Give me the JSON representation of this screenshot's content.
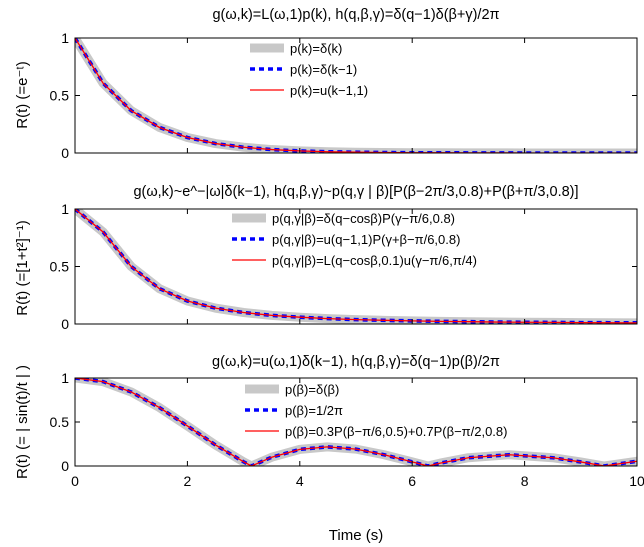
{
  "chart_data": [
    {
      "type": "line",
      "title": "g(ω,k)=L(ω,1)p(k), h(q,β,γ)=δ(q−1)δ(β+γ)/2π",
      "ylabel": "R(t) (=e⁻ᵗ)",
      "xlim": [
        0,
        10
      ],
      "ylim": [
        0,
        1
      ],
      "yticks": [
        "0",
        "0.5",
        "1"
      ],
      "x": [
        0,
        0.5,
        1,
        1.5,
        2,
        2.5,
        3,
        3.5,
        4,
        4.5,
        5,
        5.5,
        6,
        6.5,
        7,
        7.5,
        8,
        8.5,
        9,
        9.5,
        10
      ],
      "series": [
        {
          "name": "p(k)=δ(k)",
          "color": "#c8c8c8",
          "style": "thick-solid",
          "values": [
            1,
            0.607,
            0.368,
            0.223,
            0.135,
            0.082,
            0.05,
            0.03,
            0.018,
            0.011,
            0.007,
            0.004,
            0.002,
            0.002,
            0.001,
            0.001,
            0,
            0,
            0,
            0,
            0
          ]
        },
        {
          "name": "p(k)=δ(k−1)",
          "color": "#0000ff",
          "style": "dotted",
          "values": [
            1,
            0.607,
            0.368,
            0.223,
            0.135,
            0.082,
            0.05,
            0.03,
            0.018,
            0.011,
            0.007,
            0.004,
            0.002,
            0.002,
            0.001,
            0.001,
            0,
            0,
            0,
            0,
            0
          ]
        },
        {
          "name": "p(k)=u(k−1,1)",
          "color": "#ff0000",
          "style": "solid",
          "values": [
            1,
            0.607,
            0.368,
            0.223,
            0.135,
            0.082,
            0.05,
            0.03,
            0.018,
            0.011,
            0.007,
            0.004,
            0.002,
            0.002,
            0.001,
            0.001,
            0,
            0,
            0,
            0,
            0
          ]
        }
      ]
    },
    {
      "type": "line",
      "title": "g(ω,k)~e^−|ω|δ(k−1), h(q,β,γ)~p(q,γ | β)[P(β−2π/3,0.8)+P(β+π/3,0.8)]",
      "ylabel": "R(t) (=[1+t²]⁻¹)",
      "xlim": [
        0,
        10
      ],
      "ylim": [
        0,
        1
      ],
      "yticks": [
        "0",
        "0.5",
        "1"
      ],
      "x": [
        0,
        0.5,
        1,
        1.5,
        2,
        2.5,
        3,
        3.5,
        4,
        4.5,
        5,
        5.5,
        6,
        6.5,
        7,
        7.5,
        8,
        8.5,
        9,
        9.5,
        10
      ],
      "series": [
        {
          "name": "p(q,γ|β)=δ(q−cosβ)P(γ−π/6,0.8)",
          "color": "#c8c8c8",
          "style": "thick-solid",
          "values": [
            1,
            0.8,
            0.5,
            0.308,
            0.2,
            0.138,
            0.1,
            0.075,
            0.059,
            0.047,
            0.038,
            0.032,
            0.027,
            0.023,
            0.02,
            0.017,
            0.015,
            0.014,
            0.012,
            0.011,
            0.01
          ]
        },
        {
          "name": "p(q,γ|β)=u(q−1,1)P(γ+β−π/6,0.8)",
          "color": "#0000ff",
          "style": "dotted",
          "values": [
            1,
            0.8,
            0.5,
            0.308,
            0.2,
            0.138,
            0.1,
            0.075,
            0.059,
            0.047,
            0.038,
            0.032,
            0.027,
            0.023,
            0.02,
            0.017,
            0.015,
            0.014,
            0.012,
            0.011,
            0.01
          ]
        },
        {
          "name": "p(q,γ|β)=L(q−cosβ,0.1)u(γ−π/6,π/4)",
          "color": "#ff0000",
          "style": "solid",
          "values": [
            1,
            0.8,
            0.5,
            0.308,
            0.2,
            0.138,
            0.1,
            0.075,
            0.059,
            0.047,
            0.038,
            0.032,
            0.027,
            0.023,
            0.02,
            0.017,
            0.015,
            0.014,
            0.012,
            0.011,
            0.01
          ]
        }
      ]
    },
    {
      "type": "line",
      "title": "g(ω,k)=u(ω,1)δ(k−1), h(q,β,γ)=δ(q−1)p(β)/2π",
      "ylabel": "R(t) (= | sin(t)/t | )",
      "xlabel": "Time (s)",
      "xlim": [
        0,
        10
      ],
      "ylim": [
        0,
        1
      ],
      "yticks": [
        "0",
        "0.5",
        "1"
      ],
      "xticks": [
        "0",
        "2",
        "4",
        "6",
        "8",
        "10"
      ],
      "x": [
        0,
        0.5,
        1,
        1.5,
        2,
        2.5,
        3,
        3.14,
        3.5,
        4,
        4.49,
        5,
        5.5,
        6,
        6.28,
        6.5,
        7,
        7.73,
        8.5,
        9,
        9.42,
        9.5,
        10
      ],
      "series": [
        {
          "name": "p(β)=δ(β)",
          "color": "#c8c8c8",
          "style": "thick-solid",
          "values": [
            1,
            0.959,
            0.841,
            0.665,
            0.455,
            0.239,
            0.047,
            0,
            0.1,
            0.189,
            0.217,
            0.192,
            0.128,
            0.047,
            0,
            0.033,
            0.094,
            0.128,
            0.094,
            0.046,
            0,
            0.008,
            0.054
          ]
        },
        {
          "name": "p(β)=1/2π",
          "color": "#0000ff",
          "style": "dotted",
          "values": [
            1,
            0.959,
            0.841,
            0.665,
            0.455,
            0.239,
            0.047,
            0,
            0.1,
            0.189,
            0.217,
            0.192,
            0.128,
            0.047,
            0,
            0.033,
            0.094,
            0.128,
            0.094,
            0.046,
            0,
            0.008,
            0.054
          ]
        },
        {
          "name": "p(β)=0.3P(β−π/6,0.5)+0.7P(β−π/2,0.8)",
          "color": "#ff0000",
          "style": "solid",
          "values": [
            1,
            0.959,
            0.841,
            0.665,
            0.455,
            0.239,
            0.047,
            0,
            0.1,
            0.189,
            0.217,
            0.192,
            0.128,
            0.047,
            0,
            0.033,
            0.094,
            0.128,
            0.094,
            0.046,
            0,
            0.008,
            0.054
          ]
        }
      ]
    }
  ]
}
